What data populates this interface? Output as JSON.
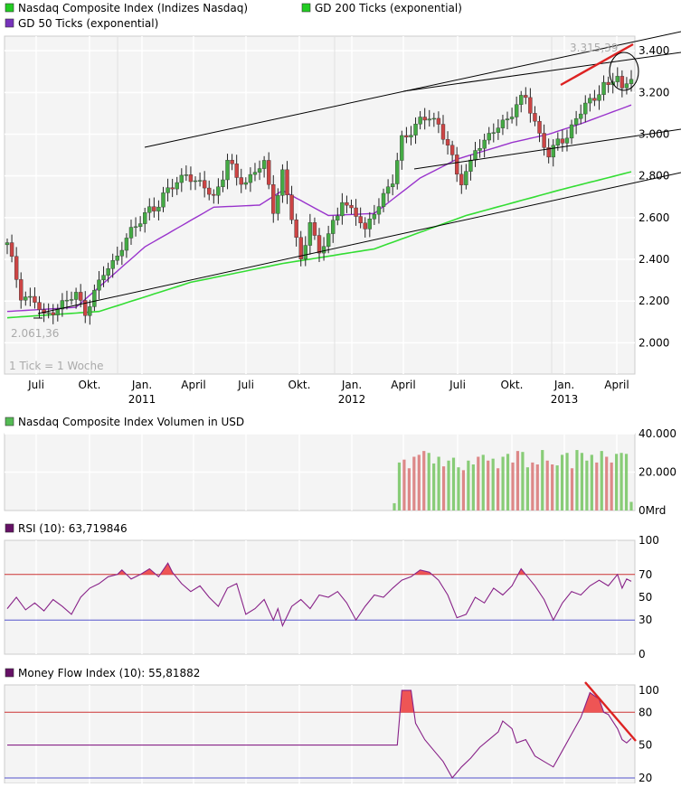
{
  "colors": {
    "plot_bg": "#f4f4f4",
    "grid": "#ffffff",
    "frame": "#cccccc",
    "candle_up": "#44aa44",
    "candle_down": "#cc4444",
    "wick": "#222222",
    "ma200": "#33dd33",
    "ma50": "#9933cc",
    "channel": "#000000",
    "trend_red": "#dd2222",
    "vol_up": "#88cc77",
    "vol_down": "#dd8888",
    "osc_line": "#882288",
    "level_hi": "#cc3333",
    "level_lo": "#5555cc",
    "overbought_fill": "#ee5555",
    "legend_green": "#22cc22",
    "legend_purple": "#7733bb",
    "legend_green_small": "#55bb55",
    "legend_rsi": "#661166"
  },
  "legend": {
    "item1": "Nasdaq Composite Index (Indizes Nasdaq)",
    "item2": "GD 200 Ticks (exponential)",
    "item3": "GD 50 Ticks (exponential)"
  },
  "price_panel": {
    "high_label": "3.315,39",
    "low_label": "2.061,36",
    "tick_note": "1 Tick = 1 Woche",
    "y_ticks": [
      "3.400",
      "3.200",
      "3.000",
      "2.800",
      "2.600",
      "2.400",
      "2.200",
      "2.000"
    ],
    "x_months": [
      "Juli",
      "Okt.",
      "Jan.",
      "April",
      "Juli",
      "Okt.",
      "Jan.",
      "April",
      "Juli",
      "Okt.",
      "Jan.",
      "April"
    ],
    "x_years": [
      "2011",
      "2012",
      "2013"
    ]
  },
  "volume_panel": {
    "title": "Nasdaq Composite Index Volumen in USD",
    "y_ticks": [
      "40.000",
      "20.000",
      "0Mrd"
    ]
  },
  "rsi_panel": {
    "title": "RSI (10): 63,719846",
    "y_ticks": [
      "100",
      "70",
      "50",
      "30",
      "0"
    ]
  },
  "mfi_panel": {
    "title": "Money Flow Index (10): 55,81882",
    "y_ticks": [
      "100",
      "80",
      "50",
      "20"
    ]
  },
  "chart_data": [
    {
      "type": "candlestick",
      "title": "Nasdaq Composite Index (Indizes Nasdaq)",
      "interval": "weekly",
      "x_range": [
        "2010-05",
        "2013-05"
      ],
      "ylim": [
        1850,
        3470
      ],
      "close_path": [
        [
          0,
          2470
        ],
        [
          3,
          2230
        ],
        [
          6,
          2200
        ],
        [
          8,
          2120
        ],
        [
          10,
          2160
        ],
        [
          13,
          2200
        ],
        [
          15,
          2230
        ],
        [
          17,
          2150
        ],
        [
          19,
          2240
        ],
        [
          21,
          2330
        ],
        [
          23,
          2380
        ],
        [
          25,
          2470
        ],
        [
          27,
          2530
        ],
        [
          29,
          2580
        ],
        [
          31,
          2650
        ],
        [
          33,
          2660
        ],
        [
          35,
          2730
        ],
        [
          37,
          2770
        ],
        [
          39,
          2820
        ],
        [
          41,
          2760
        ],
        [
          43,
          2750
        ],
        [
          45,
          2700
        ],
        [
          47,
          2800
        ],
        [
          48,
          2870
        ],
        [
          50,
          2790
        ],
        [
          52,
          2770
        ],
        [
          54,
          2830
        ],
        [
          56,
          2850
        ],
        [
          58,
          2640
        ],
        [
          59,
          2720
        ],
        [
          60,
          2820
        ],
        [
          62,
          2600
        ],
        [
          64,
          2380
        ],
        [
          65,
          2480
        ],
        [
          66,
          2600
        ],
        [
          68,
          2420
        ],
        [
          70,
          2520
        ],
        [
          72,
          2610
        ],
        [
          73,
          2700
        ],
        [
          75,
          2630
        ],
        [
          77,
          2580
        ],
        [
          78,
          2530
        ],
        [
          80,
          2640
        ],
        [
          82,
          2700
        ],
        [
          84,
          2770
        ],
        [
          85,
          2870
        ],
        [
          86,
          2980
        ],
        [
          88,
          3020
        ],
        [
          90,
          3060
        ],
        [
          92,
          3080
        ],
        [
          94,
          3050
        ],
        [
          96,
          2950
        ],
        [
          98,
          2800
        ],
        [
          99,
          2770
        ],
        [
          101,
          2870
        ],
        [
          102,
          2940
        ],
        [
          104,
          2950
        ],
        [
          106,
          3020
        ],
        [
          108,
          3060
        ],
        [
          110,
          3100
        ],
        [
          112,
          3160
        ],
        [
          113,
          3180
        ],
        [
          114,
          3120
        ],
        [
          115,
          3060
        ],
        [
          116,
          3000
        ],
        [
          117,
          2950
        ],
        [
          118,
          2890
        ],
        [
          119,
          2920
        ],
        [
          120,
          2970
        ],
        [
          122,
          2990
        ],
        [
          124,
          3080
        ],
        [
          126,
          3130
        ],
        [
          128,
          3180
        ],
        [
          130,
          3240
        ],
        [
          131,
          3230
        ],
        [
          132,
          3260
        ],
        [
          133,
          3270
        ],
        [
          134,
          3200
        ],
        [
          135,
          3250
        ],
        [
          136,
          3290
        ]
      ],
      "ma50_path": [
        [
          0,
          2150
        ],
        [
          15,
          2170
        ],
        [
          30,
          2460
        ],
        [
          45,
          2650
        ],
        [
          55,
          2660
        ],
        [
          60,
          2730
        ],
        [
          70,
          2610
        ],
        [
          80,
          2620
        ],
        [
          90,
          2790
        ],
        [
          98,
          2880
        ],
        [
          110,
          2960
        ],
        [
          118,
          3000
        ],
        [
          125,
          3050
        ],
        [
          136,
          3140
        ]
      ],
      "ma200_path": [
        [
          0,
          2120
        ],
        [
          20,
          2150
        ],
        [
          40,
          2290
        ],
        [
          60,
          2380
        ],
        [
          80,
          2450
        ],
        [
          100,
          2610
        ],
        [
          120,
          2730
        ],
        [
          136,
          2820
        ]
      ],
      "annotations": {
        "high": 3315.39,
        "low": 2061.36
      }
    },
    {
      "type": "bar",
      "title": "Nasdaq Composite Index Volumen in USD",
      "unit": "Mrd USD",
      "ylim": [
        0,
        40000
      ],
      "start_week": 102,
      "values": [
        3800,
        25000,
        26500,
        22000,
        28000,
        29000,
        31000,
        30000,
        24500,
        28000,
        23000,
        26000,
        27500,
        22500,
        21000,
        26000,
        24000,
        28000,
        29000,
        26000,
        27000,
        22000,
        28000,
        29500,
        25000,
        31000,
        30500,
        22500,
        25000,
        24000,
        31500,
        26000,
        24000,
        23500,
        29000,
        30000,
        22000,
        31500,
        30000,
        26000,
        29000,
        25000,
        31000,
        28000,
        25000,
        29500,
        30000,
        29500,
        4500
      ],
      "up": [
        1,
        1,
        0,
        0,
        0,
        0,
        0,
        1,
        1,
        1,
        0,
        1,
        1,
        1,
        0,
        1,
        1,
        0,
        1,
        0,
        1,
        0,
        1,
        1,
        0,
        0,
        1,
        1,
        0,
        0,
        1,
        0,
        0,
        1,
        1,
        1,
        0,
        1,
        1,
        1,
        1,
        0,
        1,
        0,
        0,
        1,
        1,
        1,
        1
      ]
    },
    {
      "type": "line",
      "title": "RSI (10)",
      "ylim": [
        0,
        100
      ],
      "levels": [
        70,
        30
      ],
      "path": [
        [
          0,
          40
        ],
        [
          2,
          50
        ],
        [
          4,
          39
        ],
        [
          6,
          45
        ],
        [
          8,
          38
        ],
        [
          10,
          48
        ],
        [
          12,
          42
        ],
        [
          14,
          35
        ],
        [
          16,
          50
        ],
        [
          18,
          58
        ],
        [
          20,
          62
        ],
        [
          22,
          68
        ],
        [
          24,
          70
        ],
        [
          25,
          74
        ],
        [
          27,
          66
        ],
        [
          29,
          70
        ],
        [
          31,
          75
        ],
        [
          33,
          68
        ],
        [
          35,
          80
        ],
        [
          36,
          72
        ],
        [
          38,
          62
        ],
        [
          40,
          55
        ],
        [
          42,
          60
        ],
        [
          44,
          50
        ],
        [
          46,
          42
        ],
        [
          48,
          58
        ],
        [
          50,
          62
        ],
        [
          52,
          35
        ],
        [
          54,
          40
        ],
        [
          56,
          48
        ],
        [
          58,
          30
        ],
        [
          59,
          40
        ],
        [
          60,
          25
        ],
        [
          62,
          42
        ],
        [
          64,
          48
        ],
        [
          66,
          40
        ],
        [
          68,
          52
        ],
        [
          70,
          50
        ],
        [
          72,
          55
        ],
        [
          74,
          45
        ],
        [
          76,
          30
        ],
        [
          78,
          42
        ],
        [
          80,
          52
        ],
        [
          82,
          50
        ],
        [
          84,
          58
        ],
        [
          86,
          65
        ],
        [
          88,
          68
        ],
        [
          90,
          74
        ],
        [
          92,
          72
        ],
        [
          94,
          65
        ],
        [
          96,
          52
        ],
        [
          98,
          32
        ],
        [
          100,
          35
        ],
        [
          102,
          50
        ],
        [
          104,
          45
        ],
        [
          106,
          58
        ],
        [
          108,
          52
        ],
        [
          110,
          60
        ],
        [
          112,
          75
        ],
        [
          113,
          70
        ],
        [
          115,
          60
        ],
        [
          117,
          48
        ],
        [
          119,
          30
        ],
        [
          121,
          45
        ],
        [
          123,
          55
        ],
        [
          125,
          52
        ],
        [
          127,
          60
        ],
        [
          129,
          65
        ],
        [
          131,
          60
        ],
        [
          133,
          70
        ],
        [
          134,
          58
        ],
        [
          135,
          66
        ],
        [
          136,
          64
        ]
      ]
    },
    {
      "type": "line",
      "title": "Money Flow Index (10)",
      "ylim": [
        15,
        105
      ],
      "levels": [
        80,
        50,
        20
      ],
      "path": [
        [
          0,
          50
        ],
        [
          85,
          50
        ],
        [
          86,
          100
        ],
        [
          88,
          100
        ],
        [
          89,
          70
        ],
        [
          91,
          55
        ],
        [
          93,
          45
        ],
        [
          95,
          35
        ],
        [
          97,
          20
        ],
        [
          99,
          30
        ],
        [
          101,
          38
        ],
        [
          103,
          48
        ],
        [
          105,
          55
        ],
        [
          107,
          62
        ],
        [
          108,
          72
        ],
        [
          110,
          65
        ],
        [
          111,
          52
        ],
        [
          113,
          55
        ],
        [
          115,
          40
        ],
        [
          117,
          35
        ],
        [
          119,
          30
        ],
        [
          121,
          45
        ],
        [
          123,
          60
        ],
        [
          125,
          75
        ],
        [
          127,
          98
        ],
        [
          129,
          92
        ],
        [
          130,
          80
        ],
        [
          131,
          78
        ],
        [
          133,
          65
        ],
        [
          134,
          55
        ],
        [
          135,
          52
        ],
        [
          136,
          56
        ]
      ]
    }
  ]
}
